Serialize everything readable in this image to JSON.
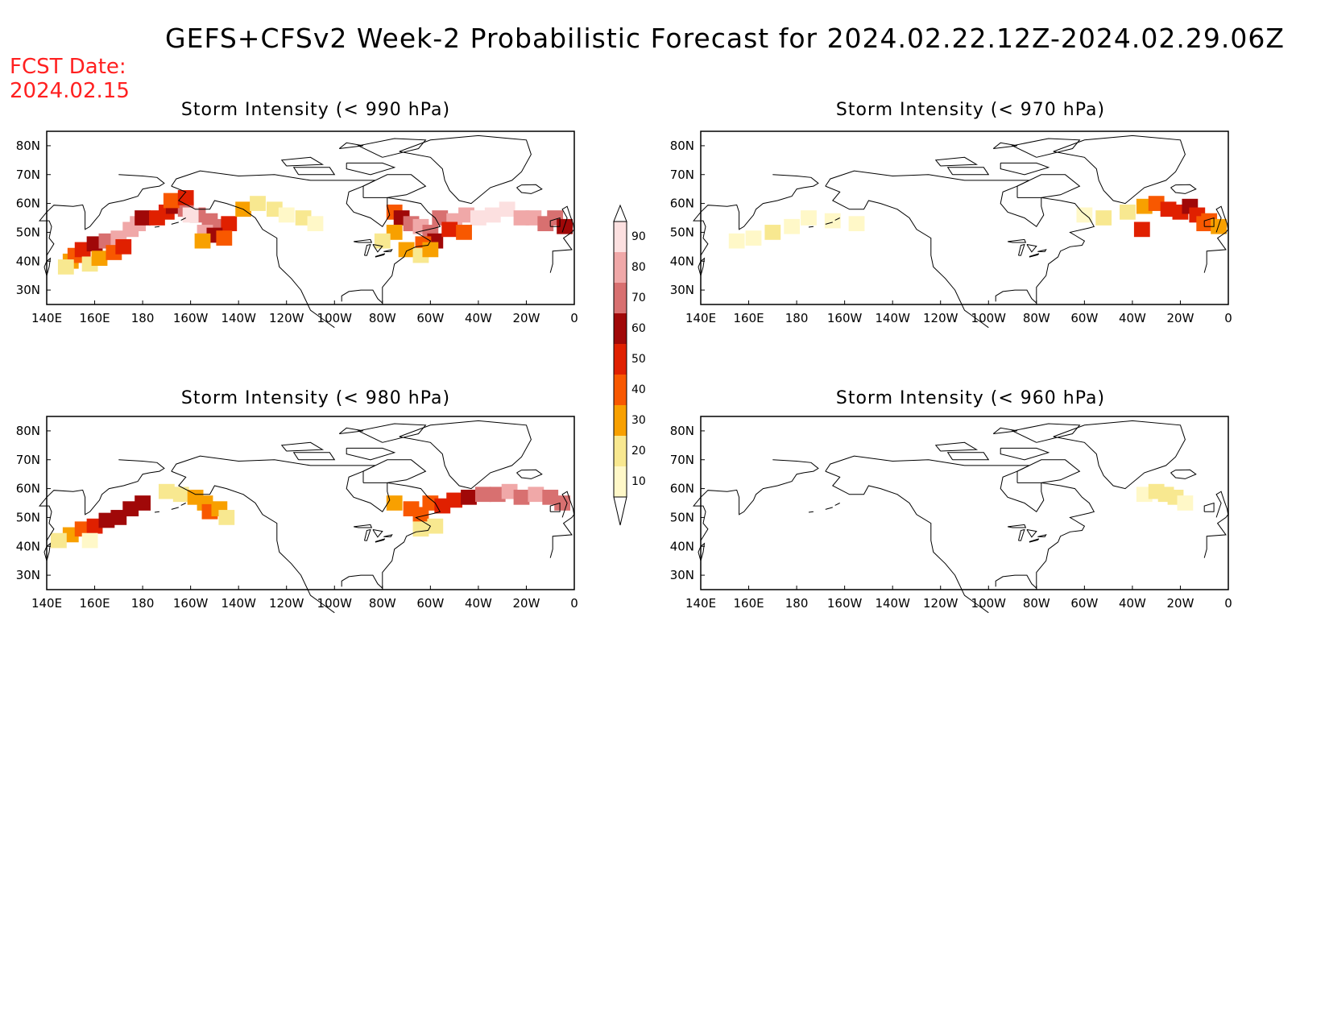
{
  "title": "GEFS+CFSv2 Week-2 Probabilistic Forecast for 2024.02.22.12Z-2024.02.29.06Z",
  "fcst_date_label": "FCST Date:",
  "fcst_date_value": "2024.02.15",
  "lon_ticks": [
    "140E",
    "160E",
    "180",
    "160W",
    "140W",
    "120W",
    "100W",
    "80W",
    "60W",
    "40W",
    "20W",
    "0"
  ],
  "lat_ticks": [
    "80N",
    "70N",
    "60N",
    "50N",
    "40N",
    "30N"
  ],
  "colorbar": {
    "labels": [
      "90",
      "80",
      "70",
      "60",
      "50",
      "40",
      "30",
      "20",
      "10"
    ],
    "colors": [
      "#fce0e0",
      "#f0a8a8",
      "#d87070",
      "#a00808",
      "#e02000",
      "#f85800",
      "#f8a000",
      "#f8e890",
      "#fff8c8"
    ]
  },
  "panels": [
    {
      "id": "p990",
      "title": "Storm Intensity (< 990 hPa)"
    },
    {
      "id": "p970",
      "title": "Storm Intensity (< 970 hPa)"
    },
    {
      "id": "p980",
      "title": "Storm Intensity (< 980 hPa)"
    },
    {
      "id": "p960",
      "title": "Storm Intensity (< 960 hPa)"
    }
  ]
}
